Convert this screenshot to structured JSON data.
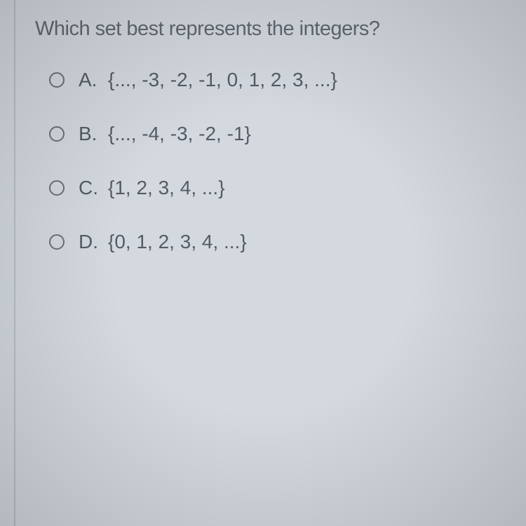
{
  "question": {
    "prompt": "Which set best represents the integers?"
  },
  "options": [
    {
      "letter": "A.",
      "text": "{..., -3, -2, -1, 0, 1, 2, 3, ...}"
    },
    {
      "letter": "B.",
      "text": "{..., -4, -3, -2, -1}"
    },
    {
      "letter": "C.",
      "text": "{1, 2, 3, 4, ...}"
    },
    {
      "letter": "D.",
      "text": "{0, 1, 2, 3, 4, ...}"
    }
  ],
  "styling": {
    "background_color": "#d4d9e0",
    "text_color": "#565c65",
    "question_color": "#626870",
    "border_color": "#b8bfc8",
    "radio_border_color": "#6b7078",
    "question_fontsize": 29,
    "option_fontsize": 28,
    "radio_size": 22,
    "option_spacing": 45
  }
}
